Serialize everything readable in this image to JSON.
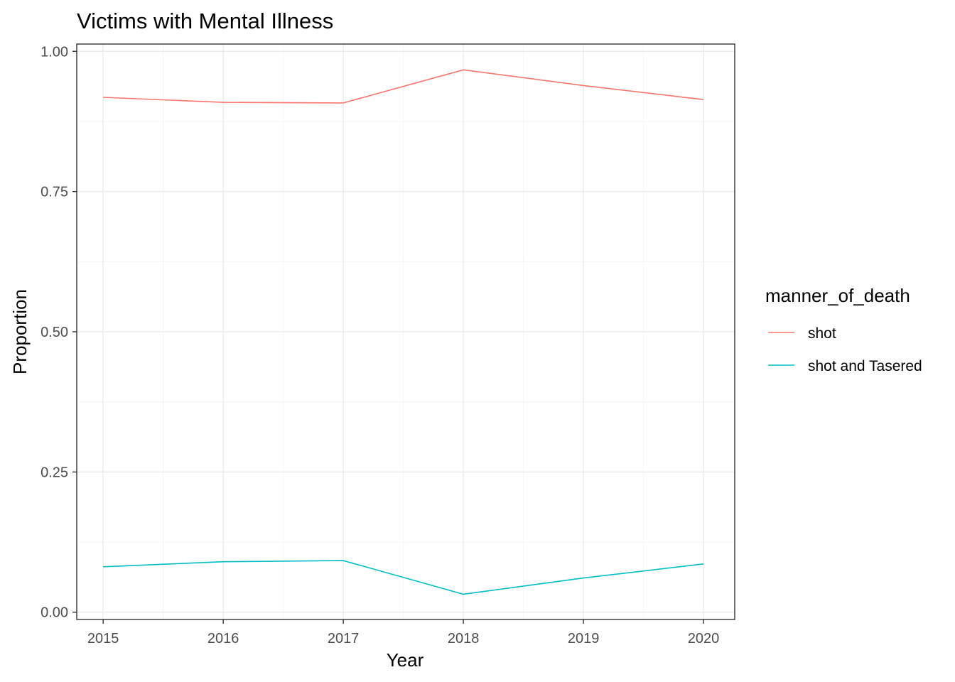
{
  "chart_data": {
    "type": "line",
    "title": "Victims with Mental Illness",
    "xlabel": "Year",
    "ylabel": "Proportion",
    "x": [
      2015,
      2016,
      2017,
      2018,
      2019,
      2020
    ],
    "x_tick_labels": [
      "2015",
      "2016",
      "2017",
      "2018",
      "2019",
      "2020"
    ],
    "y_ticks": [
      0.0,
      0.25,
      0.5,
      0.75,
      1.0
    ],
    "y_tick_labels": [
      "0.00",
      "0.25",
      "0.50",
      "0.75",
      "1.00"
    ],
    "xlim": [
      2014.78,
      2020.26
    ],
    "ylim": [
      -0.013,
      1.013
    ],
    "grid": true,
    "legend": {
      "title": "manner_of_death",
      "position": "right"
    },
    "series": [
      {
        "name": "shot",
        "color": "#F8766D",
        "values": [
          0.918,
          0.909,
          0.908,
          0.967,
          0.939,
          0.914
        ]
      },
      {
        "name": "shot and Tasered",
        "color": "#00BFC4",
        "values": [
          0.081,
          0.09,
          0.092,
          0.032,
          0.061,
          0.086
        ]
      }
    ]
  }
}
